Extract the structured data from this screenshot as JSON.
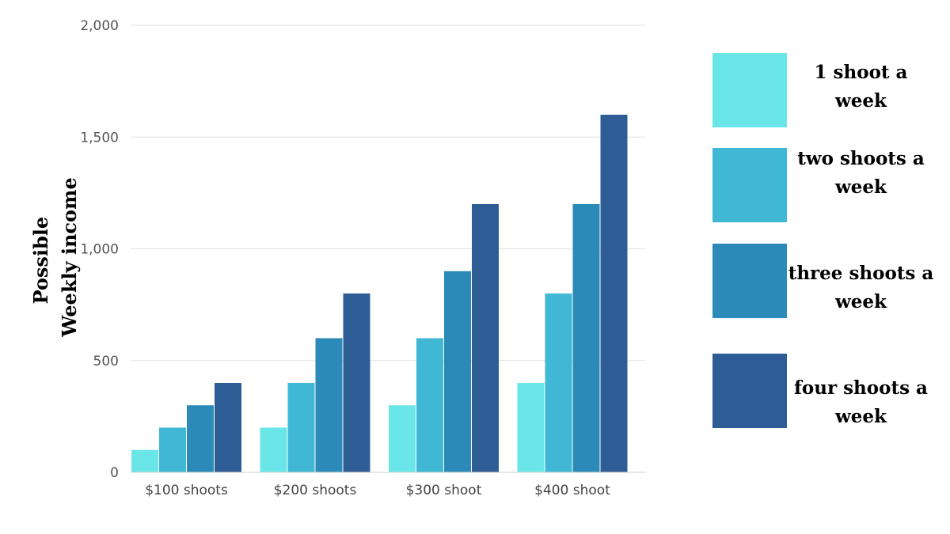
{
  "chart_data": {
    "type": "bar",
    "title": "",
    "xlabel": "",
    "ylabel": [
      "Possible",
      "Weekly income"
    ],
    "categories": [
      "$100 shoots",
      "$200 shoots",
      "$300 shoot",
      "$400 shoot"
    ],
    "ylim": [
      0,
      2000
    ],
    "yticks": [
      0,
      500,
      1000,
      1500,
      2000
    ],
    "ytick_labels": [
      "0",
      "500",
      "1,000",
      "1,500",
      "2,000"
    ],
    "grid": true,
    "legend_position": "right",
    "series": [
      {
        "name": "1 shoot a week",
        "color": "#6ae6e8",
        "values": [
          100,
          200,
          300,
          400
        ]
      },
      {
        "name": "two shoots a week",
        "color": "#40b7d4",
        "values": [
          200,
          400,
          600,
          800
        ]
      },
      {
        "name": "three shoots a week",
        "color": "#2b8ab7",
        "values": [
          300,
          600,
          900,
          1200
        ]
      },
      {
        "name": "four shoots a week",
        "color": "#2e5d96",
        "values": [
          400,
          800,
          1200,
          1600
        ]
      }
    ]
  },
  "legend": {
    "items": [
      {
        "label": "1 shoot a week"
      },
      {
        "label": "two shoots a week"
      },
      {
        "label": "three shoots a week"
      },
      {
        "label": "four shoots a week"
      }
    ]
  }
}
